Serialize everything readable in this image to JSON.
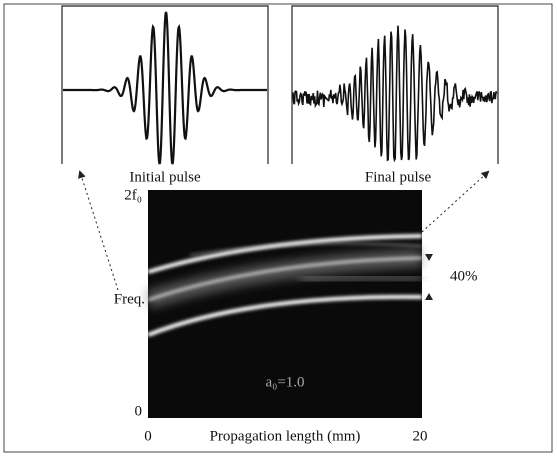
{
  "panels": {
    "initial": {
      "label": "Initial pulse"
    },
    "final": {
      "label": "Final pulse"
    }
  },
  "spectrogram": {
    "y_top_label": "2f₀",
    "y_label": "Freq.",
    "y_bottom_label": "0",
    "x_left_label": "0",
    "x_label": "Propagation length (mm)",
    "x_right_label": "20",
    "annotation": "40%",
    "parameter": "a₀=1.0"
  }
}
